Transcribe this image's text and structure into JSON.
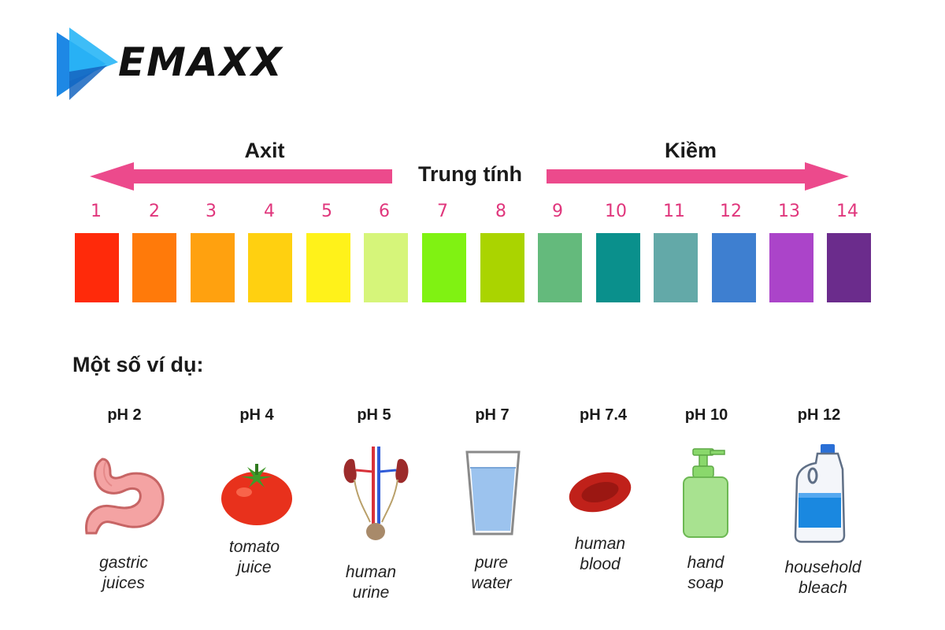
{
  "logo": {
    "text": "EMAXX",
    "colors": [
      "#1e88e5",
      "#29b6f6"
    ]
  },
  "scale": {
    "left_label": "Axit",
    "center_label": "Trung tính",
    "right_label": "Kiềm",
    "arrow_color": "#ec4a8c",
    "number_color": "#e0367c",
    "levels": [
      {
        "ph": "1",
        "color": "#ff2a0a"
      },
      {
        "ph": "2",
        "color": "#ff7a0a"
      },
      {
        "ph": "3",
        "color": "#ffa10f"
      },
      {
        "ph": "4",
        "color": "#ffd010"
      },
      {
        "ph": "5",
        "color": "#fff21a"
      },
      {
        "ph": "6",
        "color": "#d6f57a"
      },
      {
        "ph": "7",
        "color": "#80f212"
      },
      {
        "ph": "8",
        "color": "#aad400"
      },
      {
        "ph": "9",
        "color": "#64ba7c"
      },
      {
        "ph": "10",
        "color": "#0a908c"
      },
      {
        "ph": "11",
        "color": "#63a9a8"
      },
      {
        "ph": "12",
        "color": "#3e7fd0"
      },
      {
        "ph": "13",
        "color": "#ab44c9"
      },
      {
        "ph": "14",
        "color": "#6b2c8c"
      }
    ]
  },
  "examples": {
    "title": "Một số ví dụ:",
    "items": [
      {
        "ph": "pH 2",
        "icon": "stomach-icon",
        "caption": [
          "gastric",
          "juices"
        ]
      },
      {
        "ph": "pH 4",
        "icon": "tomato-icon",
        "caption": [
          "tomato",
          "juice"
        ]
      },
      {
        "ph": "pH 5",
        "icon": "urinary-system-icon",
        "caption": [
          "human",
          "urine"
        ]
      },
      {
        "ph": "pH 7",
        "icon": "water-glass-icon",
        "caption": [
          "pure",
          "water"
        ]
      },
      {
        "ph": "pH 7.4",
        "icon": "blood-cell-icon",
        "caption": [
          "human",
          "blood"
        ]
      },
      {
        "ph": "pH 10",
        "icon": "soap-pump-icon",
        "caption": [
          "hand",
          "soap"
        ]
      },
      {
        "ph": "pH 12",
        "icon": "bleach-bottle-icon",
        "caption": [
          "household",
          "bleach"
        ]
      }
    ]
  }
}
